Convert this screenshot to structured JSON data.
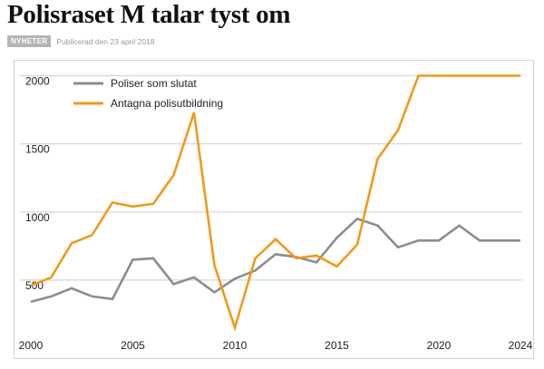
{
  "article": {
    "headline": "Polisraset M talar tyst om",
    "category": "NYHETER",
    "published": "Publicerad den 23 april 2018"
  },
  "chart_data": {
    "type": "line",
    "x": [
      2000,
      2001,
      2002,
      2003,
      2004,
      2005,
      2006,
      2007,
      2008,
      2009,
      2010,
      2011,
      2012,
      2013,
      2014,
      2015,
      2016,
      2017,
      2018,
      2019,
      2020,
      2021,
      2022,
      2023,
      2024
    ],
    "series": [
      {
        "name": "Poliser som slutat",
        "color": "#8c8c8c",
        "values": [
          340,
          380,
          440,
          380,
          360,
          650,
          660,
          470,
          520,
          410,
          510,
          570,
          690,
          670,
          630,
          810,
          950,
          900,
          740,
          790,
          790,
          900,
          790,
          790,
          790
        ]
      },
      {
        "name": "Antagna polisutbildning",
        "color": "#ef9a1b",
        "values": [
          460,
          520,
          770,
          830,
          1070,
          1040,
          1060,
          1270,
          1730,
          610,
          150,
          660,
          800,
          660,
          680,
          600,
          760,
          1390,
          1600,
          2000,
          2000,
          2000,
          2000,
          2000,
          2000
        ]
      }
    ],
    "y_ticks": [
      500,
      1000,
      1500,
      2000
    ],
    "x_ticks": [
      2000,
      2005,
      2010,
      2015,
      2020,
      2024
    ],
    "ylim": [
      100,
      2070
    ],
    "xlim": [
      2000,
      2024
    ],
    "grid": true,
    "legend_position": "top-left"
  }
}
